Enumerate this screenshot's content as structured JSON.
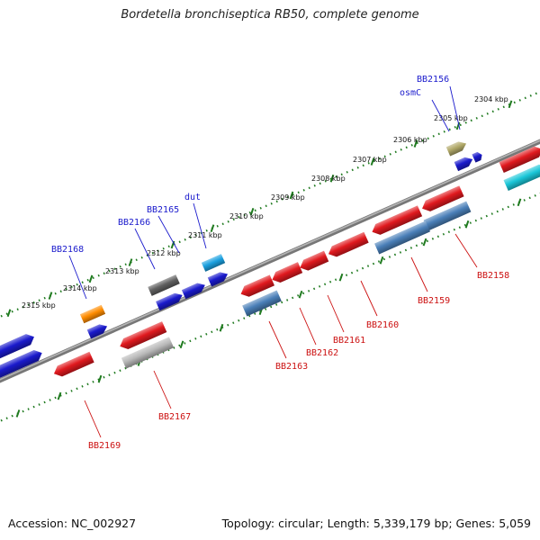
{
  "title": "Bordetella bronchiseptica RB50, complete genome",
  "footer": {
    "accession": "Accession: NC_002927",
    "topology": "Topology: circular; Length: 5,339,179 bp; Genes: 5,059"
  },
  "map": {
    "kbp_labels": [
      "2304 kbp",
      "2305 kbp",
      "2306 kbp",
      "2307 kbp",
      "2308 kbp",
      "2309 kbp",
      "2310 kbp",
      "2311 kbp",
      "2312 kbp",
      "2313 kbp",
      "2314 kbp",
      "2315 kbp"
    ],
    "colors": {
      "backbone": "#808080",
      "tick_green": "#1f7a1f",
      "forward_label": "#1a1acc",
      "reverse_label": "#cc1111"
    },
    "forward_genes": [
      {
        "label": "BB2156",
        "color": "#b0a868"
      },
      {
        "label": "osmC",
        "color": "#1a1acc"
      },
      {
        "label": "dut",
        "color": "#1aa0e0"
      },
      {
        "label": "BB2165",
        "color": "#1a1acc"
      },
      {
        "label": "BB2166",
        "color": "#606060"
      },
      {
        "label": "BB2168",
        "color": "#ff8c00"
      }
    ],
    "reverse_genes": [
      {
        "label": "BB2158",
        "color": "#e0191e"
      },
      {
        "label": "BB2159",
        "color": "#e0191e"
      },
      {
        "label": "BB2160",
        "color": "#e0191e"
      },
      {
        "label": "BB2161",
        "color": "#e0191e"
      },
      {
        "label": "BB2162",
        "color": "#e0191e"
      },
      {
        "label": "BB2163",
        "color": "#e0191e"
      },
      {
        "label": "BB2167",
        "color": "#e0191e"
      },
      {
        "label": "BB2169",
        "color": "#e0191e"
      }
    ]
  }
}
